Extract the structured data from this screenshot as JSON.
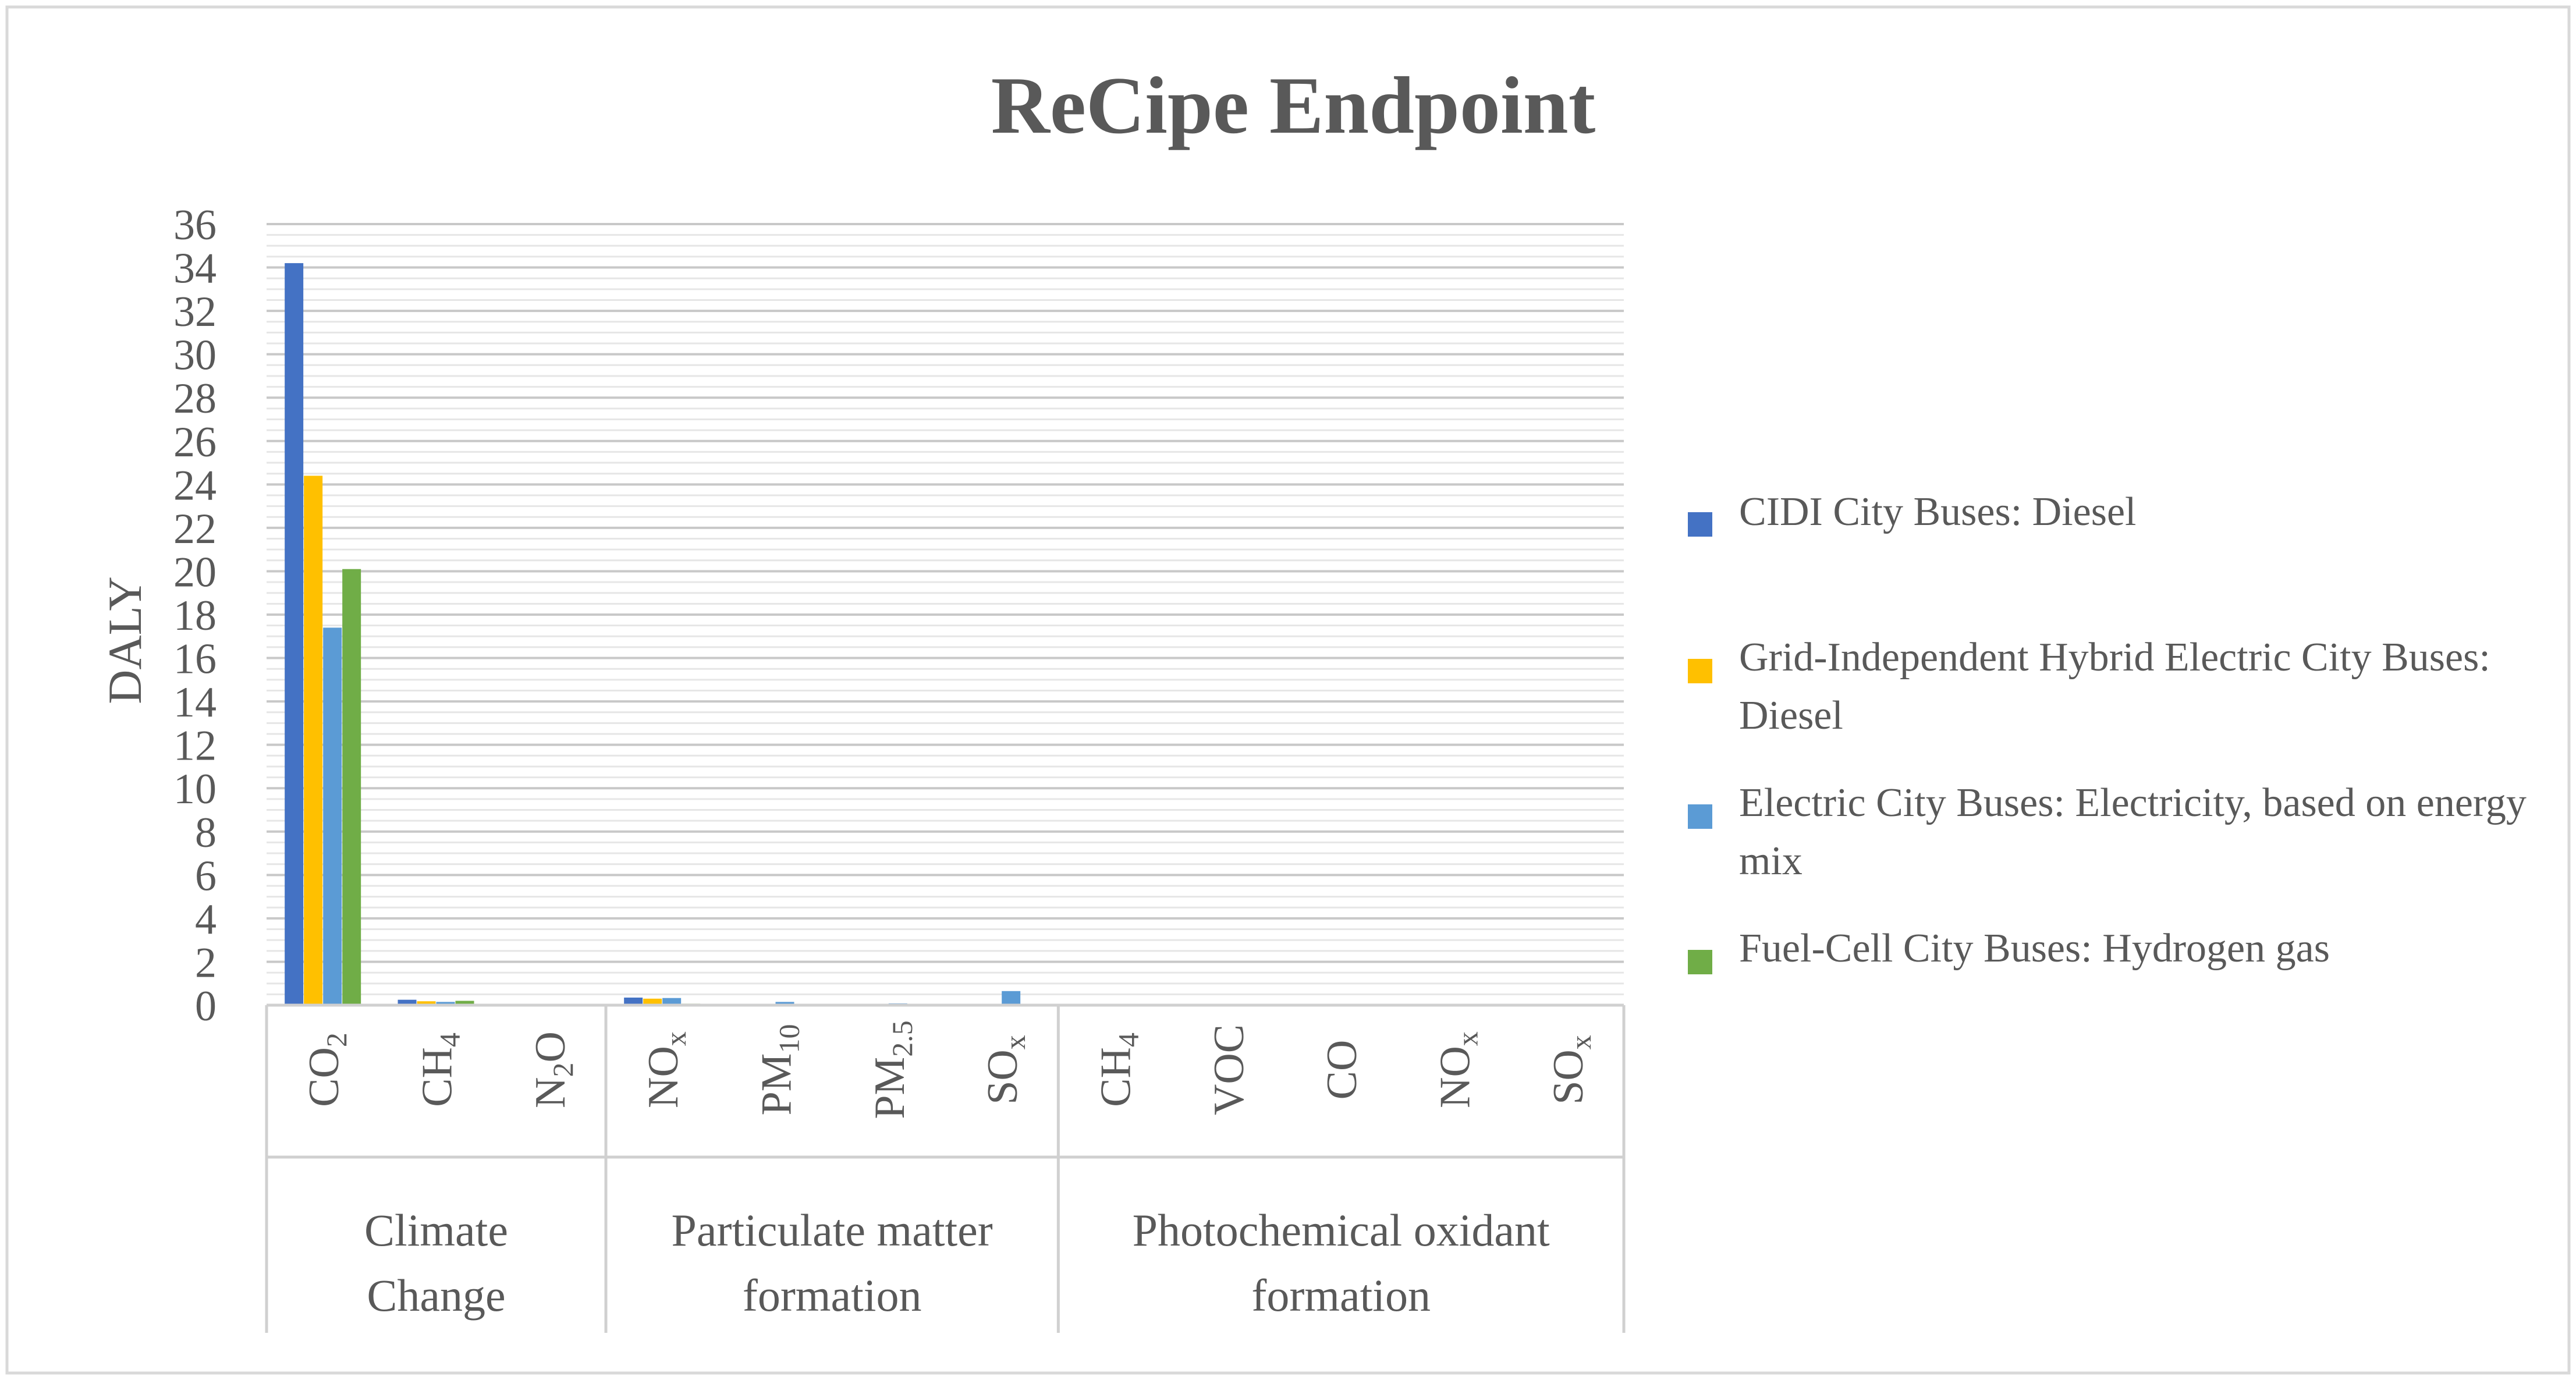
{
  "chart_data": {
    "type": "bar",
    "title": "ReCipe Endpoint",
    "ylabel": "DALY",
    "xlabel": "",
    "ylim": [
      0,
      36
    ],
    "yticks": [
      "0",
      "2",
      "4",
      "6",
      "8",
      "10",
      "12",
      "14",
      "16",
      "18",
      "20",
      "22",
      "24",
      "26",
      "28",
      "30",
      "32",
      "34",
      "36"
    ],
    "grid": true,
    "legend_position": "right",
    "groups": [
      {
        "label": "Climate Change",
        "categories": [
          0,
          1,
          2
        ]
      },
      {
        "label": "Particulate matter formation",
        "categories": [
          3,
          4,
          5,
          6
        ]
      },
      {
        "label": "Photochemical oxidant formation",
        "categories": [
          7,
          8,
          9,
          10,
          11
        ]
      }
    ],
    "categories": [
      {
        "base": "CO",
        "sub": "2"
      },
      {
        "base": "CH",
        "sub": "4"
      },
      {
        "base": "N",
        "sub": "2",
        "tail": "O"
      },
      {
        "base": "NO",
        "sub": "x"
      },
      {
        "base": "PM",
        "sub": "10"
      },
      {
        "base": "PM",
        "sub": "2.5"
      },
      {
        "base": "SO",
        "sub": "x"
      },
      {
        "base": "CH",
        "sub": "4"
      },
      {
        "base": "VOC"
      },
      {
        "base": "CO"
      },
      {
        "base": "NO",
        "sub": "x"
      },
      {
        "base": "SO",
        "sub": "x"
      }
    ],
    "series": [
      {
        "name": "CIDI City Buses: Diesel",
        "color": "#4472C4",
        "values": [
          34.2,
          0.25,
          0.02,
          0.35,
          0.05,
          0.03,
          0.02,
          0.01,
          0.01,
          0.0,
          0.01,
          0.0
        ]
      },
      {
        "name": "Grid-Independent Hybrid Electric City Buses: Diesel",
        "color": "#FFC000",
        "values": [
          24.4,
          0.18,
          0.02,
          0.3,
          0.04,
          0.02,
          0.02,
          0.01,
          0.01,
          0.0,
          0.01,
          0.0
        ]
      },
      {
        "name": "Electric City Buses: Electricity, based on energy mix",
        "color": "#5B9BD5",
        "values": [
          17.4,
          0.15,
          0.01,
          0.33,
          0.15,
          0.08,
          0.65,
          0.01,
          0.0,
          0.0,
          0.01,
          0.01
        ]
      },
      {
        "name": "Fuel-Cell City Buses: Hydrogen gas",
        "color": "#70AD47",
        "values": [
          20.1,
          0.2,
          0.01,
          0.07,
          0.03,
          0.02,
          0.06,
          0.0,
          0.0,
          0.0,
          0.0,
          0.0
        ]
      }
    ]
  }
}
